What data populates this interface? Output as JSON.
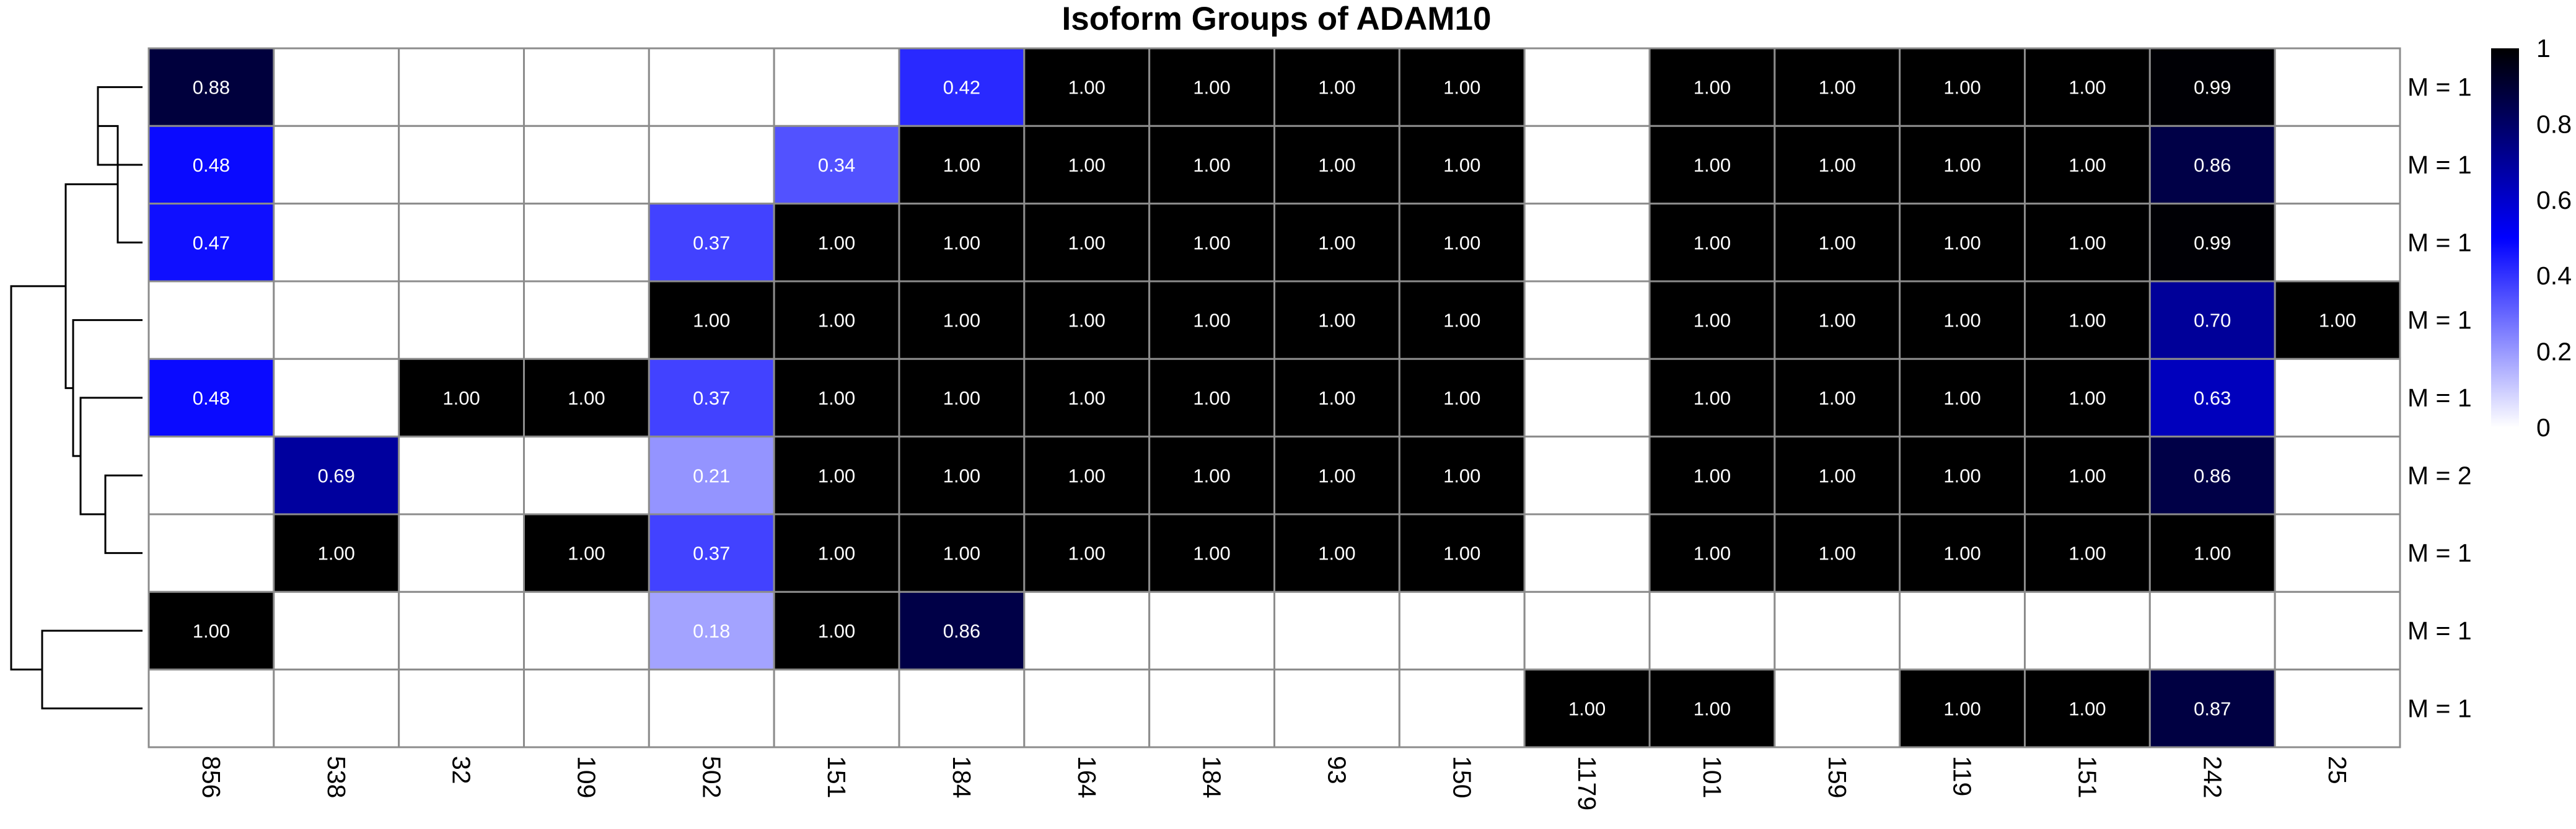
{
  "chart_data": {
    "type": "heatmap",
    "title": "Isoform Groups of ADAM10",
    "columns": [
      "856",
      "538",
      "32",
      "109",
      "502",
      "151",
      "184",
      "164",
      "184",
      "93",
      "150",
      "1179",
      "101",
      "159",
      "119",
      "151",
      "242",
      "25"
    ],
    "rows": [
      "M = 1",
      "M = 1",
      "M = 1",
      "M = 1",
      "M = 1",
      "M = 2",
      "M = 1",
      "M = 1",
      "M = 1"
    ],
    "values": [
      [
        0.88,
        null,
        null,
        null,
        null,
        null,
        0.42,
        1.0,
        1.0,
        1.0,
        1.0,
        null,
        1.0,
        1.0,
        1.0,
        1.0,
        0.99,
        null
      ],
      [
        0.48,
        null,
        null,
        null,
        null,
        0.34,
        1.0,
        1.0,
        1.0,
        1.0,
        1.0,
        null,
        1.0,
        1.0,
        1.0,
        1.0,
        0.86,
        null
      ],
      [
        0.47,
        null,
        null,
        null,
        0.37,
        1.0,
        1.0,
        1.0,
        1.0,
        1.0,
        1.0,
        null,
        1.0,
        1.0,
        1.0,
        1.0,
        0.99,
        null
      ],
      [
        null,
        null,
        null,
        null,
        1.0,
        1.0,
        1.0,
        1.0,
        1.0,
        1.0,
        1.0,
        null,
        1.0,
        1.0,
        1.0,
        1.0,
        0.7,
        1.0
      ],
      [
        0.48,
        null,
        1.0,
        1.0,
        0.37,
        1.0,
        1.0,
        1.0,
        1.0,
        1.0,
        1.0,
        null,
        1.0,
        1.0,
        1.0,
        1.0,
        0.63,
        null
      ],
      [
        null,
        0.69,
        null,
        null,
        0.21,
        1.0,
        1.0,
        1.0,
        1.0,
        1.0,
        1.0,
        null,
        1.0,
        1.0,
        1.0,
        1.0,
        0.86,
        null
      ],
      [
        null,
        1.0,
        null,
        1.0,
        0.37,
        1.0,
        1.0,
        1.0,
        1.0,
        1.0,
        1.0,
        null,
        1.0,
        1.0,
        1.0,
        1.0,
        1.0,
        null
      ],
      [
        1.0,
        null,
        null,
        null,
        0.18,
        1.0,
        0.86,
        null,
        null,
        null,
        null,
        null,
        null,
        null,
        null,
        null,
        null,
        null
      ],
      [
        null,
        null,
        null,
        null,
        null,
        null,
        null,
        null,
        null,
        null,
        null,
        1.0,
        1.0,
        null,
        1.0,
        1.0,
        0.87,
        null
      ]
    ],
    "colorbar": {
      "range": [
        0,
        1
      ],
      "ticks": [
        "0",
        "0.2",
        "0.4",
        "0.6",
        "0.8",
        "1"
      ],
      "colors": [
        "#ffffff",
        "#0000ff",
        "#000000"
      ],
      "placement": "right"
    },
    "row_dendrogram": true,
    "grid": true,
    "colors": {
      "grid": "#8c8c8c",
      "dendrogram": "#000000"
    }
  }
}
